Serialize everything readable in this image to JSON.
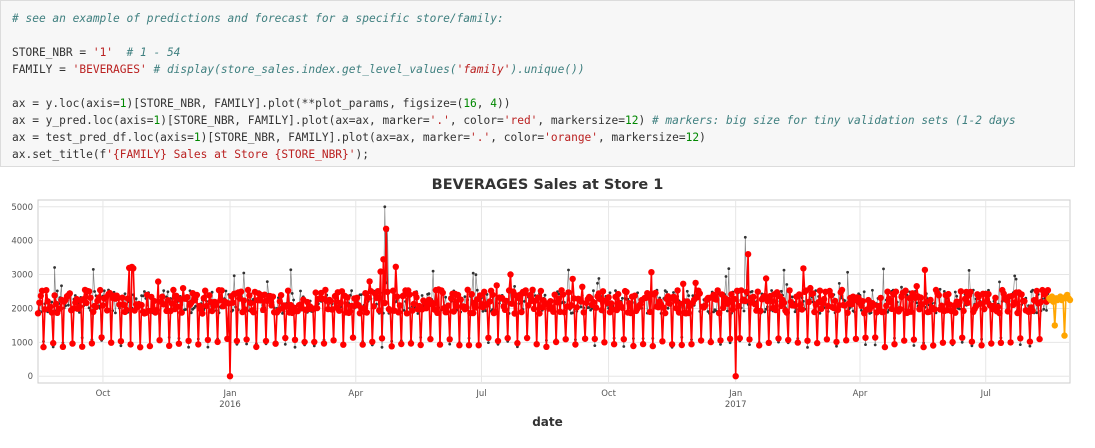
{
  "code": {
    "line1": "# see an example of predictions and forecast for a specific store/family:",
    "line3": "STORE_NBR = '1'  # 1 - 54",
    "line4": "FAMILY = 'BEVERAGES' # display(store_sales.index.get_level_values('family').unique())",
    "line6": "ax = y.loc(axis=1)[STORE_NBR, FAMILY].plot(**plot_params, figsize=(16, 4))",
    "line7": "ax = y_pred.loc(axis=1)[STORE_NBR, FAMILY].plot(ax=ax, marker='.', color='red', markersize=12) # markers: big size for tiny validation sets (1-2 days",
    "line8": "ax = test_pred_df.loc(axis=1)[STORE_NBR, FAMILY].plot(ax=ax, marker='.', color='orange', markersize=12)",
    "line9": "ax.set_title(f'{FAMILY} Sales at Store {STORE_NBR}');"
  },
  "chart_data": {
    "type": "line",
    "title": "BEVERAGES Sales at Store 1",
    "xlabel": "date",
    "ylabel": "",
    "x_range": [
      "2015-08-15",
      "2017-08-31"
    ],
    "ylim": [
      -200,
      5200
    ],
    "yticks": [
      0,
      1000,
      2000,
      3000,
      4000,
      5000
    ],
    "xticks": [
      {
        "date": "2015-10-01",
        "label": "Oct",
        "sublabel": ""
      },
      {
        "date": "2016-01-01",
        "label": "Jan",
        "sublabel": "2016"
      },
      {
        "date": "2016-04-01",
        "label": "Apr",
        "sublabel": ""
      },
      {
        "date": "2016-07-01",
        "label": "Jul",
        "sublabel": ""
      },
      {
        "date": "2016-10-01",
        "label": "Oct",
        "sublabel": ""
      },
      {
        "date": "2017-01-01",
        "label": "Jan",
        "sublabel": "2017"
      },
      {
        "date": "2017-04-01",
        "label": "Apr",
        "sublabel": ""
      },
      {
        "date": "2017-07-01",
        "label": "Jul",
        "sublabel": ""
      }
    ],
    "grid": true,
    "series": [
      {
        "role": "actual",
        "color": "#333333",
        "style": "daily sales, weekly pattern: ~2200 most days, ~1000 one day per week",
        "start": "2015-08-15",
        "end": "2017-08-15",
        "base_weekday": 2200,
        "base_low": 1000,
        "peaks": [
          {
            "date": "2016-04-22",
            "value": 5000
          },
          {
            "date": "2016-04-24",
            "value": 4300
          },
          {
            "date": "2017-01-08",
            "value": 4100
          }
        ],
        "zeros": [
          "2016-01-01",
          "2017-01-01"
        ]
      },
      {
        "role": "validation prediction",
        "color": "#ff0000",
        "start": "2015-08-15",
        "end": "2017-08-15",
        "base_weekday": 2200,
        "base_low": 1000,
        "peaks": [
          {
            "date": "2016-04-23",
            "value": 4350
          },
          {
            "date": "2016-04-21",
            "value": 3450
          },
          {
            "date": "2017-01-10",
            "value": 3600
          }
        ],
        "zeros": [
          "2016-01-01",
          "2017-01-01"
        ]
      },
      {
        "role": "test forecast",
        "color": "#ffa500",
        "start": "2017-08-16",
        "end": "2017-08-31",
        "values": [
          2300,
          2250,
          2350,
          2200,
          1500,
          2300,
          2250,
          2300,
          2350,
          2250,
          2300,
          1200,
          2350,
          2400,
          2300,
          2250
        ]
      }
    ]
  }
}
